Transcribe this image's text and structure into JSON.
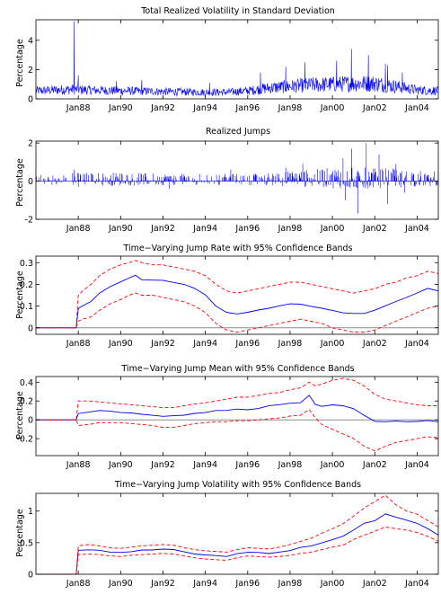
{
  "x_domain": [
    1986.0,
    2005.0
  ],
  "x_ticks": [
    "Jan88",
    "Jan90",
    "Jan92",
    "Jan94",
    "Jan96",
    "Jan98",
    "Jan00",
    "Jan02",
    "Jan04"
  ],
  "x_tick_years": [
    1988,
    1990,
    1992,
    1994,
    1996,
    1998,
    2000,
    2002,
    2004
  ],
  "colors": {
    "series": "#0000ff",
    "bands": "#ff0000",
    "zero_line": "#8c8c8c",
    "axes": "#000000"
  },
  "chart_data": [
    {
      "type": "line",
      "title": "Total Realized Volatility in Standard Deviation",
      "ylabel": "Percentage",
      "ylim": [
        0,
        5.4
      ],
      "yticks": [
        0,
        2,
        4
      ],
      "x_range": [
        1986.0,
        2005.0
      ],
      "baseline": [
        [
          1986.0,
          0.55
        ],
        [
          1987.8,
          0.65
        ],
        [
          1988.5,
          0.6
        ],
        [
          1990.0,
          0.55
        ],
        [
          1992.0,
          0.5
        ],
        [
          1994.0,
          0.45
        ],
        [
          1995.0,
          0.45
        ],
        [
          1996.0,
          0.55
        ],
        [
          1997.0,
          0.75
        ],
        [
          1998.0,
          0.85
        ],
        [
          1999.0,
          0.95
        ],
        [
          2000.0,
          1.0
        ],
        [
          2001.0,
          1.05
        ],
        [
          2002.0,
          1.05
        ],
        [
          2003.0,
          0.85
        ],
        [
          2004.0,
          0.6
        ],
        [
          2005.0,
          0.55
        ]
      ],
      "spikes": [
        [
          1987.8,
          5.3
        ],
        [
          1988.0,
          1.6
        ],
        [
          1989.8,
          1.2
        ],
        [
          1991.0,
          1.3
        ],
        [
          1994.2,
          1.1
        ],
        [
          1996.6,
          1.8
        ],
        [
          1997.8,
          2.2
        ],
        [
          1998.7,
          2.5
        ],
        [
          2000.2,
          2.6
        ],
        [
          2000.9,
          3.4
        ],
        [
          2001.7,
          3.0
        ],
        [
          2002.5,
          2.4
        ],
        [
          2002.6,
          2.3
        ],
        [
          2003.3,
          1.8
        ]
      ],
      "series": [
        {
          "name": "",
          "color": "#0000ff"
        }
      ]
    },
    {
      "type": "line",
      "title": "Realized Jumps",
      "ylabel": "Percentage",
      "ylim": [
        -2,
        2.1
      ],
      "yticks": [
        -2,
        0,
        2
      ],
      "x_range": [
        1986.0,
        2005.0
      ],
      "baseline": [
        [
          1986.0,
          0.25
        ],
        [
          1987.8,
          0.35
        ],
        [
          1990.0,
          0.35
        ],
        [
          1993.0,
          0.3
        ],
        [
          1996.0,
          0.3
        ],
        [
          1998.0,
          0.4
        ],
        [
          2000.0,
          0.55
        ],
        [
          2002.0,
          0.55
        ],
        [
          2004.0,
          0.45
        ],
        [
          2005.0,
          0.4
        ]
      ],
      "spikes": [
        [
          1987.8,
          0.6
        ],
        [
          1988.0,
          -0.3
        ],
        [
          1992.3,
          -0.4
        ],
        [
          1995.2,
          0.6
        ],
        [
          1997.8,
          0.7
        ],
        [
          1998.6,
          0.9
        ],
        [
          2000.5,
          1.2
        ],
        [
          2000.6,
          -1.0
        ],
        [
          2000.9,
          1.7
        ],
        [
          2001.2,
          -1.7
        ],
        [
          2001.6,
          2.0
        ],
        [
          2002.2,
          1.4
        ],
        [
          2002.6,
          -1.2
        ],
        [
          2003.0,
          0.9
        ],
        [
          2003.4,
          -0.6
        ]
      ],
      "series": [
        {
          "name": "",
          "color": "#0000ff"
        }
      ]
    },
    {
      "type": "line",
      "title": "Time−Varying Jump Rate with 95% Confidence Bands",
      "ylabel": "Percentage",
      "ylim": [
        -0.03,
        0.33
      ],
      "yticks": [
        0,
        0.1,
        0.2,
        0.3
      ],
      "zero_line": 0,
      "x": [
        1986.0,
        1987.9,
        1988.0,
        1988.2,
        1988.6,
        1989.0,
        1989.5,
        1990.0,
        1990.4,
        1990.7,
        1991.0,
        1991.5,
        1992.0,
        1992.5,
        1993.0,
        1993.5,
        1994.0,
        1994.5,
        1995.0,
        1995.5,
        1996.0,
        1996.5,
        1997.0,
        1997.5,
        1998.0,
        1998.5,
        1999.0,
        1999.5,
        2000.0,
        2000.5,
        2001.0,
        2001.5,
        2002.0,
        2002.5,
        2003.0,
        2003.5,
        2004.0,
        2004.5,
        2005.0
      ],
      "series": [
        {
          "role": "estimate",
          "color": "#0000ff",
          "values": [
            0,
            0,
            0.09,
            0.1,
            0.12,
            0.16,
            0.19,
            0.21,
            0.23,
            0.24,
            0.22,
            0.22,
            0.22,
            0.21,
            0.2,
            0.18,
            0.15,
            0.1,
            0.07,
            0.065,
            0.07,
            0.08,
            0.09,
            0.1,
            0.11,
            0.11,
            0.1,
            0.09,
            0.08,
            0.07,
            0.065,
            0.065,
            0.08,
            0.1,
            0.12,
            0.14,
            0.16,
            0.18,
            0.17
          ]
        },
        {
          "role": "upper",
          "color": "#ff0000",
          "style": "dashed",
          "values": [
            0,
            0,
            0.15,
            0.17,
            0.2,
            0.24,
            0.27,
            0.29,
            0.3,
            0.31,
            0.3,
            0.29,
            0.29,
            0.28,
            0.27,
            0.26,
            0.24,
            0.2,
            0.17,
            0.16,
            0.17,
            0.18,
            0.19,
            0.2,
            0.21,
            0.21,
            0.2,
            0.19,
            0.18,
            0.17,
            0.16,
            0.17,
            0.18,
            0.2,
            0.21,
            0.23,
            0.24,
            0.26,
            0.25
          ]
        },
        {
          "role": "lower",
          "color": "#ff0000",
          "style": "dashed",
          "values": [
            0,
            0,
            0.03,
            0.04,
            0.05,
            0.08,
            0.11,
            0.13,
            0.15,
            0.16,
            0.15,
            0.15,
            0.14,
            0.13,
            0.12,
            0.1,
            0.07,
            0.02,
            -0.01,
            -0.02,
            -0.01,
            0.0,
            0.01,
            0.02,
            0.03,
            0.04,
            0.03,
            0.02,
            0.0,
            -0.01,
            -0.02,
            -0.02,
            -0.01,
            0.01,
            0.03,
            0.05,
            0.07,
            0.09,
            0.1
          ]
        }
      ]
    },
    {
      "type": "line",
      "title": "Time−Varying Jump Mean with 95% Confidence Bands",
      "ylabel": "Percentage",
      "ylim": [
        -0.38,
        0.46
      ],
      "yticks": [
        -0.2,
        0,
        0.2,
        0.4
      ],
      "zero_line": 0,
      "x": [
        1986.0,
        1987.9,
        1988.0,
        1988.5,
        1989.0,
        1989.5,
        1990.0,
        1990.5,
        1991.0,
        1991.5,
        1992.0,
        1992.5,
        1993.0,
        1993.5,
        1994.0,
        1994.5,
        1995.0,
        1995.5,
        1996.0,
        1996.5,
        1997.0,
        1997.5,
        1998.0,
        1998.5,
        1998.9,
        1999.2,
        1999.5,
        2000.0,
        2000.5,
        2001.0,
        2001.5,
        2002.0,
        2002.5,
        2003.0,
        2003.5,
        2004.0,
        2004.5,
        2005.0
      ],
      "series": [
        {
          "role": "estimate",
          "color": "#0000ff",
          "values": [
            0,
            0,
            0.07,
            0.08,
            0.1,
            0.09,
            0.08,
            0.07,
            0.06,
            0.05,
            0.04,
            0.04,
            0.05,
            0.07,
            0.08,
            0.1,
            0.1,
            0.11,
            0.11,
            0.12,
            0.15,
            0.16,
            0.18,
            0.18,
            0.26,
            0.16,
            0.14,
            0.16,
            0.15,
            0.12,
            0.05,
            -0.02,
            -0.02,
            -0.01,
            -0.02,
            -0.02,
            -0.01,
            -0.02
          ]
        },
        {
          "role": "upper",
          "color": "#ff0000",
          "style": "dashed",
          "values": [
            0,
            0,
            0.2,
            0.2,
            0.19,
            0.18,
            0.17,
            0.16,
            0.15,
            0.14,
            0.13,
            0.13,
            0.15,
            0.17,
            0.18,
            0.2,
            0.22,
            0.24,
            0.24,
            0.26,
            0.28,
            0.29,
            0.32,
            0.34,
            0.4,
            0.36,
            0.38,
            0.42,
            0.44,
            0.42,
            0.36,
            0.27,
            0.22,
            0.2,
            0.18,
            0.16,
            0.15,
            0.15
          ]
        },
        {
          "role": "lower",
          "color": "#ff0000",
          "style": "dashed",
          "values": [
            0,
            0,
            -0.06,
            -0.05,
            -0.03,
            -0.03,
            -0.03,
            -0.04,
            -0.05,
            -0.06,
            -0.08,
            -0.08,
            -0.06,
            -0.04,
            -0.03,
            -0.02,
            -0.02,
            -0.01,
            -0.01,
            0.0,
            0.01,
            0.02,
            0.04,
            0.05,
            0.11,
            0.02,
            -0.05,
            -0.1,
            -0.15,
            -0.2,
            -0.28,
            -0.33,
            -0.28,
            -0.24,
            -0.22,
            -0.2,
            -0.18,
            -0.19
          ]
        }
      ]
    },
    {
      "type": "line",
      "title": "Time−Varying Jump Volatility with 95% Confidence Bands",
      "ylabel": "Percentage",
      "ylim": [
        0,
        1.28
      ],
      "yticks": [
        0,
        0.5,
        1
      ],
      "x": [
        1986.0,
        1987.9,
        1988.0,
        1988.5,
        1989.0,
        1989.5,
        1990.0,
        1990.5,
        1991.0,
        1991.5,
        1992.0,
        1992.5,
        1993.0,
        1993.5,
        1994.0,
        1994.5,
        1995.0,
        1995.5,
        1996.0,
        1996.5,
        1997.0,
        1997.5,
        1998.0,
        1998.5,
        1999.0,
        1999.5,
        2000.0,
        2000.5,
        2001.0,
        2001.5,
        2002.0,
        2002.5,
        2003.0,
        2003.5,
        2004.0,
        2004.5,
        2005.0
      ],
      "series": [
        {
          "role": "estimate",
          "color": "#0000ff",
          "values": [
            0,
            0,
            0.38,
            0.39,
            0.38,
            0.35,
            0.34,
            0.36,
            0.38,
            0.39,
            0.4,
            0.39,
            0.35,
            0.32,
            0.3,
            0.29,
            0.28,
            0.32,
            0.35,
            0.34,
            0.33,
            0.35,
            0.38,
            0.42,
            0.45,
            0.5,
            0.55,
            0.6,
            0.7,
            0.8,
            0.85,
            0.95,
            0.9,
            0.85,
            0.8,
            0.72,
            0.62
          ]
        },
        {
          "role": "upper",
          "color": "#ff0000",
          "style": "dashed",
          "values": [
            0,
            0,
            0.45,
            0.47,
            0.45,
            0.42,
            0.41,
            0.43,
            0.45,
            0.46,
            0.47,
            0.46,
            0.42,
            0.39,
            0.37,
            0.36,
            0.35,
            0.39,
            0.42,
            0.41,
            0.4,
            0.43,
            0.47,
            0.52,
            0.57,
            0.65,
            0.72,
            0.8,
            0.92,
            1.05,
            1.15,
            1.25,
            1.1,
            1.0,
            0.95,
            0.85,
            0.75
          ]
        },
        {
          "role": "lower",
          "color": "#ff0000",
          "style": "dashed",
          "values": [
            0,
            0,
            0.31,
            0.32,
            0.31,
            0.29,
            0.28,
            0.3,
            0.31,
            0.32,
            0.33,
            0.32,
            0.29,
            0.26,
            0.24,
            0.23,
            0.22,
            0.26,
            0.29,
            0.28,
            0.27,
            0.28,
            0.3,
            0.33,
            0.35,
            0.39,
            0.43,
            0.46,
            0.55,
            0.62,
            0.68,
            0.75,
            0.72,
            0.7,
            0.66,
            0.6,
            0.52
          ]
        }
      ]
    }
  ]
}
